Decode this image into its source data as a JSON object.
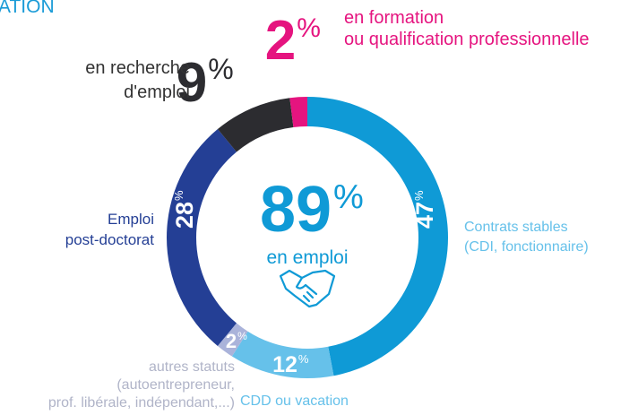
{
  "chart_data": {
    "type": "donut",
    "title": "ATION",
    "unit": "%",
    "categories": [
      [
        "Contrats stables",
        "(CDI, fonctionnaire)"
      ],
      [
        "CDD ou  vacation"
      ],
      [
        "autres statuts",
        "(autoentrepreneur,",
        "prof. libérale, indépendant,...)"
      ],
      [
        "Emploi",
        "post-doctorat"
      ],
      [
        "en recherche",
        "d'emploi"
      ],
      [
        "en formation",
        "ou qualification professionnelle"
      ]
    ],
    "values": [
      47,
      12,
      2,
      28,
      9,
      2
    ],
    "colors": [
      "#0f9ad6",
      "#66c1ea",
      "#aab3da",
      "#243f95",
      "#2c2c30",
      "#e5147f"
    ],
    "center_value": 89,
    "center_label": "en emploi"
  }
}
